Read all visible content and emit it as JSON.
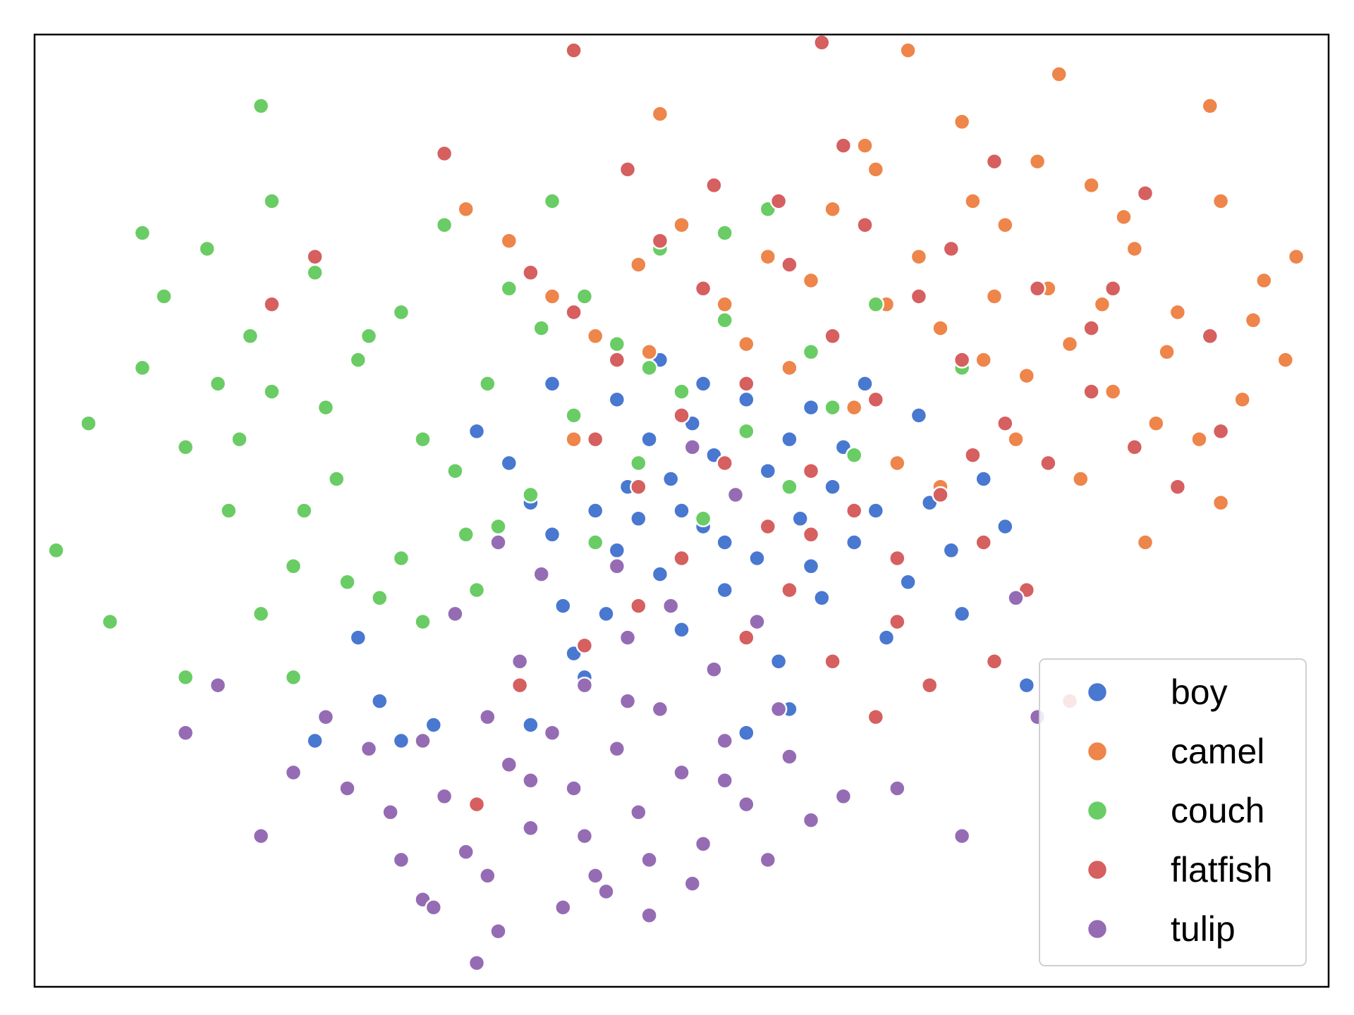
{
  "chart_data": {
    "type": "scatter",
    "title": "",
    "xlabel": "",
    "ylabel": "",
    "xlim": [
      -6,
      6
    ],
    "ylim": [
      -6,
      6
    ],
    "grid": false,
    "axis_ticks": false,
    "legend_placement": "bottom-right",
    "series": [
      {
        "name": "boy",
        "color": "#4878d0",
        "points": [
          [
            -1.9,
            1.0
          ],
          [
            -1.6,
            0.6
          ],
          [
            -1.4,
            0.1
          ],
          [
            -1.2,
            -0.3
          ],
          [
            -1.1,
            -1.2
          ],
          [
            -1.0,
            -1.8
          ],
          [
            -0.9,
            -2.1
          ],
          [
            -0.7,
            -1.3
          ],
          [
            -0.6,
            -0.5
          ],
          [
            -0.5,
            0.3
          ],
          [
            -0.3,
            0.9
          ],
          [
            -0.2,
            -0.8
          ],
          [
            -0.1,
            0.4
          ],
          [
            0.0,
            -1.5
          ],
          [
            0.1,
            1.1
          ],
          [
            0.2,
            -0.2
          ],
          [
            0.3,
            0.7
          ],
          [
            0.4,
            -1.0
          ],
          [
            0.5,
            0.2
          ],
          [
            0.6,
            1.4
          ],
          [
            0.7,
            -0.6
          ],
          [
            0.8,
            0.5
          ],
          [
            0.9,
            -1.9
          ],
          [
            1.0,
            0.9
          ],
          [
            1.1,
            -0.1
          ],
          [
            1.2,
            1.3
          ],
          [
            1.3,
            -1.1
          ],
          [
            1.4,
            0.3
          ],
          [
            1.5,
            0.8
          ],
          [
            1.6,
            -0.4
          ],
          [
            1.7,
            1.6
          ],
          [
            1.8,
            0.0
          ],
          [
            1.9,
            -1.6
          ],
          [
            2.0,
            0.6
          ],
          [
            2.1,
            -0.9
          ],
          [
            2.2,
            1.2
          ],
          [
            2.3,
            0.1
          ],
          [
            2.5,
            -0.5
          ],
          [
            2.6,
            -1.3
          ],
          [
            2.8,
            0.4
          ],
          [
            3.0,
            -0.2
          ],
          [
            3.2,
            -2.2
          ],
          [
            -3.0,
            -1.6
          ],
          [
            -2.8,
            -2.4
          ],
          [
            -2.6,
            -2.9
          ],
          [
            -2.3,
            -2.7
          ],
          [
            -3.4,
            -2.9
          ],
          [
            -0.8,
            0.0
          ],
          [
            0.2,
            1.6
          ],
          [
            -0.4,
            -0.1
          ],
          [
            1.0,
            -2.5
          ],
          [
            0.6,
            -2.8
          ],
          [
            1.8,
            -2.6
          ],
          [
            -0.2,
            1.9
          ],
          [
            0.0,
            0.0
          ],
          [
            -1.2,
            1.6
          ],
          [
            -0.6,
            1.4
          ],
          [
            0.4,
            -0.4
          ],
          [
            1.2,
            -0.7
          ],
          [
            -1.4,
            -2.7
          ]
        ]
      },
      {
        "name": "camel",
        "color": "#ee854a",
        "points": [
          [
            1.4,
            3.8
          ],
          [
            1.8,
            4.3
          ],
          [
            2.2,
            3.2
          ],
          [
            2.6,
            4.9
          ],
          [
            3.0,
            3.6
          ],
          [
            3.4,
            2.8
          ],
          [
            3.8,
            4.1
          ],
          [
            4.2,
            3.3
          ],
          [
            4.6,
            2.5
          ],
          [
            5.0,
            3.9
          ],
          [
            5.3,
            2.4
          ],
          [
            5.6,
            1.9
          ],
          [
            3.2,
            1.7
          ],
          [
            3.6,
            2.1
          ],
          [
            4.0,
            1.5
          ],
          [
            4.4,
            1.1
          ],
          [
            4.8,
            0.9
          ],
          [
            5.2,
            1.4
          ],
          [
            2.4,
            2.3
          ],
          [
            2.8,
            1.9
          ],
          [
            1.9,
            2.6
          ],
          [
            1.2,
            2.9
          ],
          [
            0.8,
            3.2
          ],
          [
            0.4,
            2.6
          ],
          [
            0.0,
            3.6
          ],
          [
            -0.4,
            3.1
          ],
          [
            -0.8,
            2.2
          ],
          [
            -1.2,
            2.7
          ],
          [
            -1.6,
            3.4
          ],
          [
            -2.0,
            3.8
          ],
          [
            -0.3,
            2.0
          ],
          [
            -1.0,
            0.9
          ],
          [
            -0.2,
            5.0
          ],
          [
            2.1,
            5.8
          ],
          [
            3.5,
            5.5
          ],
          [
            4.9,
            5.1
          ],
          [
            1.0,
            1.8
          ],
          [
            1.6,
            1.3
          ],
          [
            2.0,
            0.6
          ],
          [
            2.4,
            0.3
          ],
          [
            3.1,
            0.9
          ],
          [
            3.7,
            0.4
          ],
          [
            4.3,
            -0.4
          ],
          [
            5.0,
            0.1
          ],
          [
            5.7,
            3.2
          ],
          [
            4.1,
            3.7
          ],
          [
            3.3,
            4.4
          ],
          [
            2.9,
            2.7
          ],
          [
            4.5,
            2.0
          ],
          [
            5.4,
            2.9
          ],
          [
            0.6,
            2.1
          ],
          [
            1.7,
            4.6
          ],
          [
            2.7,
            3.9
          ],
          [
            3.9,
            2.6
          ]
        ]
      },
      {
        "name": "couch",
        "color": "#6acc64",
        "points": [
          [
            -5.8,
            -0.5
          ],
          [
            -5.5,
            1.1
          ],
          [
            -5.3,
            -1.4
          ],
          [
            -5.0,
            1.8
          ],
          [
            -4.8,
            2.7
          ],
          [
            -4.6,
            0.8
          ],
          [
            -4.4,
            3.3
          ],
          [
            -4.2,
            0.0
          ],
          [
            -4.0,
            2.2
          ],
          [
            -3.8,
            1.5
          ],
          [
            -3.6,
            -0.7
          ],
          [
            -3.4,
            3.0
          ],
          [
            -3.2,
            0.4
          ],
          [
            -3.0,
            1.9
          ],
          [
            -2.8,
            -1.1
          ],
          [
            -2.6,
            2.5
          ],
          [
            -2.4,
            0.9
          ],
          [
            -2.2,
            3.6
          ],
          [
            -2.0,
            -0.3
          ],
          [
            -1.8,
            1.6
          ],
          [
            -1.6,
            2.8
          ],
          [
            -1.4,
            0.2
          ],
          [
            -1.2,
            3.9
          ],
          [
            -1.0,
            1.2
          ],
          [
            -0.8,
            -0.4
          ],
          [
            -0.6,
            2.1
          ],
          [
            -0.4,
            0.6
          ],
          [
            -0.2,
            3.3
          ],
          [
            0.0,
            1.5
          ],
          [
            0.2,
            -0.1
          ],
          [
            0.4,
            2.4
          ],
          [
            0.6,
            1.0
          ],
          [
            0.8,
            3.8
          ],
          [
            1.0,
            0.3
          ],
          [
            1.2,
            2.0
          ],
          [
            1.4,
            1.3
          ],
          [
            1.6,
            0.7
          ],
          [
            1.8,
            2.6
          ],
          [
            -3.9,
            5.1
          ],
          [
            -3.8,
            3.9
          ],
          [
            -5.0,
            3.5
          ],
          [
            -3.6,
            -2.1
          ],
          [
            -4.6,
            -2.1
          ],
          [
            -3.9,
            -1.3
          ],
          [
            -4.1,
            0.9
          ],
          [
            -2.6,
            -0.6
          ],
          [
            -3.3,
            1.3
          ],
          [
            -1.7,
            -0.2
          ],
          [
            -2.1,
            0.5
          ],
          [
            -1.3,
            2.3
          ],
          [
            -2.9,
            2.2
          ],
          [
            -3.5,
            0.0
          ],
          [
            -4.3,
            1.6
          ],
          [
            -3.1,
            -0.9
          ],
          [
            -0.9,
            2.7
          ],
          [
            2.6,
            1.8
          ],
          [
            0.4,
            3.5
          ],
          [
            -1.9,
            -1.0
          ],
          [
            -2.4,
            -1.4
          ],
          [
            -0.3,
            1.8
          ]
        ]
      },
      {
        "name": "flatfish",
        "color": "#d65f5f",
        "points": [
          [
            -1.4,
            3.0
          ],
          [
            -1.0,
            2.5
          ],
          [
            -0.6,
            1.9
          ],
          [
            -0.2,
            3.4
          ],
          [
            0.2,
            2.8
          ],
          [
            0.6,
            1.6
          ],
          [
            1.0,
            3.1
          ],
          [
            1.4,
            2.2
          ],
          [
            1.8,
            1.4
          ],
          [
            2.2,
            2.7
          ],
          [
            2.6,
            1.9
          ],
          [
            3.0,
            1.1
          ],
          [
            3.4,
            0.6
          ],
          [
            3.8,
            1.5
          ],
          [
            4.2,
            0.8
          ],
          [
            4.6,
            0.3
          ],
          [
            5.0,
            1.0
          ],
          [
            -0.8,
            0.9
          ],
          [
            -0.4,
            0.3
          ],
          [
            0.0,
            1.2
          ],
          [
            0.4,
            0.6
          ],
          [
            0.8,
            -0.2
          ],
          [
            1.2,
            0.5
          ],
          [
            1.6,
            0.0
          ],
          [
            2.0,
            -0.6
          ],
          [
            2.4,
            0.2
          ],
          [
            2.8,
            -0.4
          ],
          [
            3.2,
            -1.0
          ],
          [
            1.0,
            -1.0
          ],
          [
            0.6,
            -1.6
          ],
          [
            1.4,
            -1.9
          ],
          [
            2.0,
            -1.4
          ],
          [
            1.8,
            -2.6
          ],
          [
            2.3,
            -2.2
          ],
          [
            2.9,
            -1.9
          ],
          [
            3.6,
            -2.4
          ],
          [
            -0.4,
            -1.2
          ],
          [
            -0.9,
            -1.7
          ],
          [
            -1.5,
            -2.2
          ],
          [
            -1.9,
            -3.7
          ],
          [
            -3.4,
            3.2
          ],
          [
            -2.2,
            4.5
          ],
          [
            -1.0,
            5.8
          ],
          [
            1.3,
            5.9
          ],
          [
            1.5,
            4.6
          ],
          [
            0.9,
            3.9
          ],
          [
            2.9,
            4.4
          ],
          [
            4.3,
            4.0
          ],
          [
            3.8,
            2.3
          ],
          [
            4.9,
            2.2
          ],
          [
            0.3,
            4.1
          ],
          [
            -0.5,
            4.3
          ],
          [
            -3.8,
            2.6
          ],
          [
            1.7,
            3.6
          ],
          [
            2.5,
            3.3
          ],
          [
            3.3,
            2.8
          ],
          [
            4.0,
            2.8
          ],
          [
            0.0,
            -0.6
          ],
          [
            1.2,
            -0.3
          ],
          [
            2.7,
            0.7
          ]
        ]
      },
      {
        "name": "tulip",
        "color": "#956cb4",
        "points": [
          [
            -2.4,
            -2.9
          ],
          [
            -2.2,
            -3.6
          ],
          [
            -2.0,
            -4.3
          ],
          [
            -1.8,
            -2.6
          ],
          [
            -1.6,
            -3.2
          ],
          [
            -1.4,
            -4.0
          ],
          [
            -1.2,
            -2.8
          ],
          [
            -1.0,
            -3.5
          ],
          [
            -0.8,
            -4.6
          ],
          [
            -0.6,
            -3.0
          ],
          [
            -0.4,
            -3.8
          ],
          [
            -0.2,
            -2.5
          ],
          [
            0.0,
            -3.3
          ],
          [
            0.2,
            -4.2
          ],
          [
            0.4,
            -2.9
          ],
          [
            0.6,
            -3.7
          ],
          [
            0.8,
            -4.4
          ],
          [
            1.0,
            -3.1
          ],
          [
            -1.9,
            -5.7
          ],
          [
            -1.7,
            -5.3
          ],
          [
            -1.1,
            -5.0
          ],
          [
            -0.7,
            -4.8
          ],
          [
            -0.3,
            -5.1
          ],
          [
            -2.4,
            -4.9
          ],
          [
            -2.7,
            -3.8
          ],
          [
            -3.1,
            -3.5
          ],
          [
            -3.3,
            -2.6
          ],
          [
            -4.3,
            -2.2
          ],
          [
            -4.6,
            -2.8
          ],
          [
            -3.9,
            -4.1
          ],
          [
            -3.6,
            -3.3
          ],
          [
            -2.9,
            -3.0
          ],
          [
            -2.6,
            -4.4
          ],
          [
            -1.5,
            -1.9
          ],
          [
            -0.9,
            -2.2
          ],
          [
            -0.5,
            -1.6
          ],
          [
            -0.1,
            -1.2
          ],
          [
            0.3,
            -2.0
          ],
          [
            0.7,
            -1.4
          ],
          [
            0.9,
            -2.5
          ],
          [
            1.5,
            -3.6
          ],
          [
            2.0,
            -3.5
          ],
          [
            2.6,
            -4.1
          ],
          [
            3.1,
            -1.1
          ],
          [
            3.3,
            -2.6
          ],
          [
            0.5,
            0.2
          ],
          [
            0.1,
            0.8
          ],
          [
            -0.6,
            -0.7
          ],
          [
            -1.3,
            -0.8
          ],
          [
            -1.7,
            -0.4
          ],
          [
            -2.1,
            -1.3
          ],
          [
            -1.4,
            -3.4
          ],
          [
            -0.3,
            -4.4
          ],
          [
            0.1,
            -4.7
          ],
          [
            1.2,
            -3.9
          ],
          [
            -2.3,
            -5.0
          ],
          [
            -1.8,
            -4.6
          ],
          [
            -0.9,
            -4.1
          ],
          [
            -0.5,
            -2.4
          ],
          [
            0.4,
            -3.4
          ]
        ]
      }
    ]
  }
}
